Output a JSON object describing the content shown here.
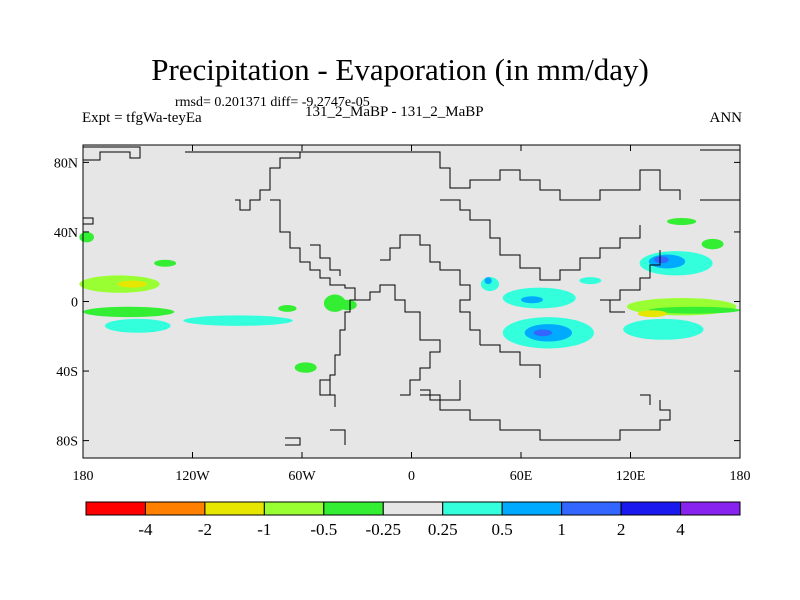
{
  "chart_data": {
    "type": "heatmap",
    "title": "Precipitation - Evaporation (in mm/day)",
    "stats": "rmsd= 0.201371 diff= -9.2747e-05",
    "experiment": "Expt = tfgWa-teyEa",
    "case": "131_2_MaBP - 131_2_MaBP",
    "season": "ANN",
    "x_axis": {
      "range": [
        -180,
        180
      ],
      "ticks": [
        -180,
        -120,
        -60,
        0,
        60,
        120,
        180
      ],
      "tick_labels": [
        "180",
        "120W",
        "60W",
        "0",
        "60E",
        "120E",
        "180"
      ]
    },
    "y_axis": {
      "range": [
        -90,
        90
      ],
      "ticks": [
        80,
        40,
        0,
        -40,
        -80
      ],
      "tick_labels": [
        "80N",
        "40N",
        "0",
        "40S",
        "80S"
      ]
    },
    "colorbar": {
      "colors": [
        "#ff0000",
        "#ff8000",
        "#e6e600",
        "#99ff33",
        "#33ee33",
        "#e6e6e6",
        "#33ffdd",
        "#00aaff",
        "#3366ff",
        "#1a1aee",
        "#8822ee"
      ],
      "labels": [
        "-4",
        "-2",
        "-1",
        "-0.5",
        "-0.25",
        "0.25",
        "0.5",
        "1",
        "2",
        "4"
      ]
    },
    "background_color": "#e6e6e6",
    "anomaly_regions": [
      {
        "lon": -160,
        "lat": 10,
        "rlon": 22,
        "rlat": 5,
        "level": "-0.5"
      },
      {
        "lon": -153,
        "lat": 10,
        "rlon": 8,
        "rlat": 2,
        "level": "-1"
      },
      {
        "lon": -155,
        "lat": -6,
        "rlon": 25,
        "rlat": 3,
        "level": "-0.25"
      },
      {
        "lon": -150,
        "lat": -14,
        "rlon": 18,
        "rlat": 4,
        "level": "0.25"
      },
      {
        "lon": -95,
        "lat": -11,
        "rlon": 30,
        "rlat": 3,
        "level": "0.25"
      },
      {
        "lon": -178,
        "lat": 37,
        "rlon": 4,
        "rlat": 3,
        "level": "-0.25"
      },
      {
        "lon": -135,
        "lat": 22,
        "rlon": 6,
        "rlat": 2,
        "level": "-0.25"
      },
      {
        "lon": -42,
        "lat": -1,
        "rlon": 6,
        "rlat": 5,
        "level": "-0.25"
      },
      {
        "lon": -35,
        "lat": -2,
        "rlon": 5,
        "rlat": 3,
        "level": "-0.25"
      },
      {
        "lon": -68,
        "lat": -4,
        "rlon": 5,
        "rlat": 2,
        "level": "-0.25"
      },
      {
        "lon": -58,
        "lat": -38,
        "rlon": 6,
        "rlat": 3,
        "level": "-0.25"
      },
      {
        "lon": 43,
        "lat": 10,
        "rlon": 5,
        "rlat": 4,
        "level": "0.25"
      },
      {
        "lon": 42,
        "lat": 12,
        "rlon": 2,
        "rlat": 2,
        "level": "0.5"
      },
      {
        "lon": 70,
        "lat": 2,
        "rlon": 20,
        "rlat": 6,
        "level": "0.25"
      },
      {
        "lon": 66,
        "lat": 1,
        "rlon": 6,
        "rlat": 2,
        "level": "0.5"
      },
      {
        "lon": 75,
        "lat": -18,
        "rlon": 25,
        "rlat": 9,
        "level": "0.25"
      },
      {
        "lon": 75,
        "lat": -18,
        "rlon": 13,
        "rlat": 5,
        "level": "0.5"
      },
      {
        "lon": 72,
        "lat": -18,
        "rlon": 5,
        "rlat": 2,
        "level": "1"
      },
      {
        "lon": 148,
        "lat": -3,
        "rlon": 30,
        "rlat": 5,
        "level": "-0.5"
      },
      {
        "lon": 155,
        "lat": -5,
        "rlon": 25,
        "rlat": 2,
        "level": "-0.25"
      },
      {
        "lon": 132,
        "lat": -7,
        "rlon": 8,
        "rlat": 2,
        "level": "-1"
      },
      {
        "lon": 138,
        "lat": -16,
        "rlon": 22,
        "rlat": 6,
        "level": "0.25"
      },
      {
        "lon": 145,
        "lat": 22,
        "rlon": 20,
        "rlat": 7,
        "level": "0.25"
      },
      {
        "lon": 140,
        "lat": 23,
        "rlon": 10,
        "rlat": 4,
        "level": "0.5"
      },
      {
        "lon": 137,
        "lat": 24,
        "rlon": 4,
        "rlat": 2,
        "level": "1"
      },
      {
        "lon": 148,
        "lat": 46,
        "rlon": 8,
        "rlat": 2,
        "level": "-0.25"
      },
      {
        "lon": 165,
        "lat": 33,
        "rlon": 6,
        "rlat": 3,
        "level": "-0.25"
      },
      {
        "lon": 98,
        "lat": 12,
        "rlon": 6,
        "rlat": 2,
        "level": "0.25"
      }
    ]
  }
}
